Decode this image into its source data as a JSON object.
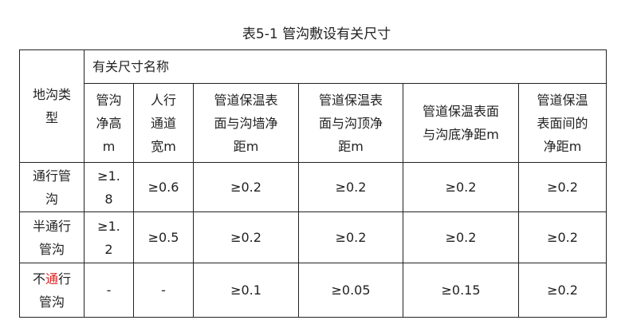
{
  "title": "表5-1 管沟敷设有关尺寸",
  "row_header": "地沟类\n型",
  "group_header": "有关尺寸名称",
  "columns": [
    "管沟\n净高\nm",
    "人行\n通道\n宽m",
    "管道保温表\n面与沟墙净\n距m",
    "管道保温表\n面与沟顶净\n距m",
    "管道保温表面\n与沟底净距m",
    "管道保温\n表面间的\n净距m"
  ],
  "rows": [
    {
      "type": "通行管\n沟",
      "values": [
        "≥1.\n8",
        "≥0.6",
        "≥0.2",
        "≥0.2",
        "≥0.2",
        "≥0.2"
      ]
    },
    {
      "type": "半通行\n管沟",
      "values": [
        "≥1.\n2",
        "≥0.5",
        "≥0.2",
        "≥0.2",
        "≥0.2",
        "≥0.2"
      ]
    },
    {
      "type_parts": [
        "不",
        "通",
        "行\n管沟"
      ],
      "values": [
        "-",
        "-",
        "≥0.1",
        "≥0.05",
        "≥0.15",
        "≥0.2"
      ]
    }
  ],
  "colors": {
    "highlight": "#dd2222"
  }
}
